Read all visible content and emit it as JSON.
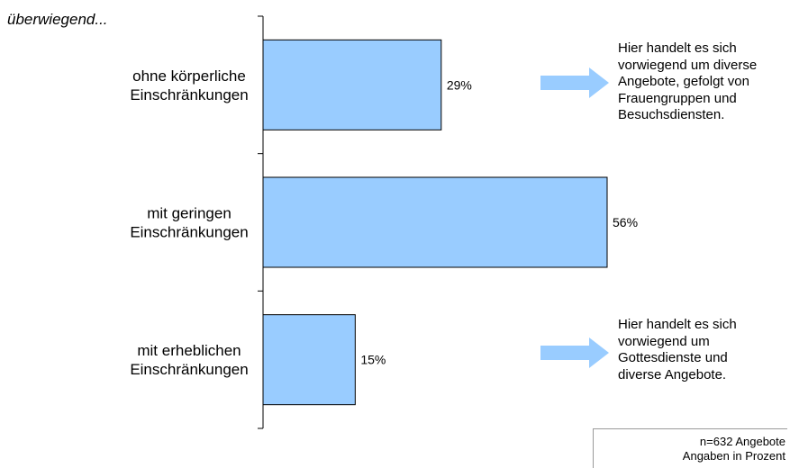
{
  "chart_data": {
    "type": "bar",
    "orientation": "horizontal",
    "subtitle": "überwiegend...",
    "categories": [
      [
        "ohne körperliche",
        "Einschränkungen"
      ],
      [
        "mit geringen",
        "Einschränkungen"
      ],
      [
        "mit erheblichen",
        "Einschränkungen"
      ]
    ],
    "values": [
      29,
      56,
      15
    ],
    "value_labels": [
      "29%",
      "56%",
      "15%"
    ],
    "xlim": [
      0,
      85
    ],
    "grid": false,
    "bar_color": "#99ccff"
  },
  "notes": [
    {
      "lines": [
        "Hier handelt es sich",
        "vorwiegend um diverse",
        "Angebote, gefolgt von",
        "Frauengruppen und",
        "Besuchsdiensten."
      ],
      "icon": "right-arrow-icon"
    },
    {
      "lines": [
        "Hier handelt es sich",
        "vorwiegend um",
        "Gottesdienste und",
        "diverse Angebote."
      ],
      "icon": "right-arrow-icon"
    }
  ],
  "footnote": {
    "line1": "n=632 Angebote",
    "line2": "Angaben in Prozent"
  },
  "colors": {
    "bar_fill": "#99ccff",
    "arrow_fill": "#99ccff",
    "axis": "#000000"
  }
}
